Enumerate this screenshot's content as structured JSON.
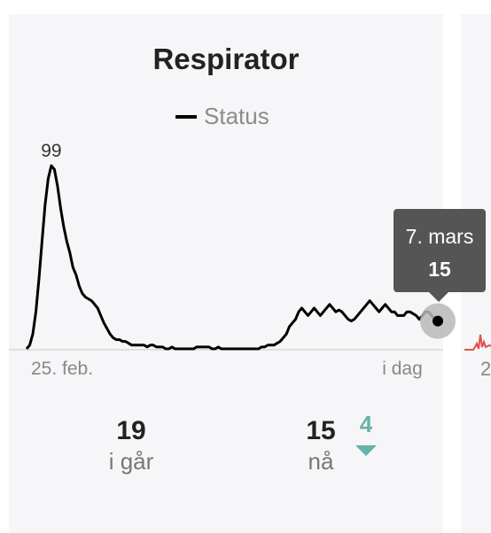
{
  "card": {
    "title": "Respirator",
    "legend_label": "Status",
    "yesterday_value": "19",
    "yesterday_label": "i går",
    "now_value": "15",
    "now_label": "nå",
    "change_value": "4",
    "change_direction": "down"
  },
  "tooltip": {
    "date": "7. mars",
    "value": "15"
  },
  "colors": {
    "line": "#000000",
    "change": "#66b3a9",
    "tooltip_bg": "#555555",
    "secondary_chart": "#e0524a"
  },
  "chart_data": {
    "type": "line",
    "title": "Respirator",
    "series": [
      {
        "name": "Status",
        "values": [
          0,
          2,
          8,
          20,
          38,
          58,
          78,
          92,
          99,
          97,
          88,
          76,
          66,
          58,
          52,
          44,
          40,
          34,
          30,
          28,
          27,
          26,
          24,
          22,
          18,
          14,
          11,
          8,
          6,
          5,
          5,
          4,
          4,
          3,
          2,
          2,
          2,
          2,
          2,
          1,
          2,
          2,
          1,
          1,
          1,
          0,
          0,
          1,
          0,
          0,
          0,
          0,
          0,
          0,
          0,
          1,
          1,
          1,
          1,
          1,
          0,
          0,
          1,
          0,
          0,
          0,
          0,
          0,
          0,
          0,
          0,
          0,
          0,
          0,
          0,
          0,
          1,
          1,
          2,
          2,
          2,
          3,
          4,
          6,
          8,
          12,
          14,
          16,
          20,
          22,
          20,
          18,
          20,
          22,
          20,
          18,
          20,
          22,
          24,
          22,
          20,
          21,
          20,
          18,
          16,
          15,
          16,
          18,
          20,
          22,
          24,
          26,
          24,
          22,
          20,
          22,
          24,
          22,
          20,
          20,
          18,
          18,
          18,
          20,
          20,
          19,
          18,
          16,
          18,
          20,
          20,
          18,
          16,
          15
        ]
      }
    ],
    "x_tick_labels": [
      "25. feb.",
      "i dag"
    ],
    "peak_label": "99",
    "ylim": [
      0,
      100
    ],
    "grid": false,
    "legend_position": "top-center"
  }
}
